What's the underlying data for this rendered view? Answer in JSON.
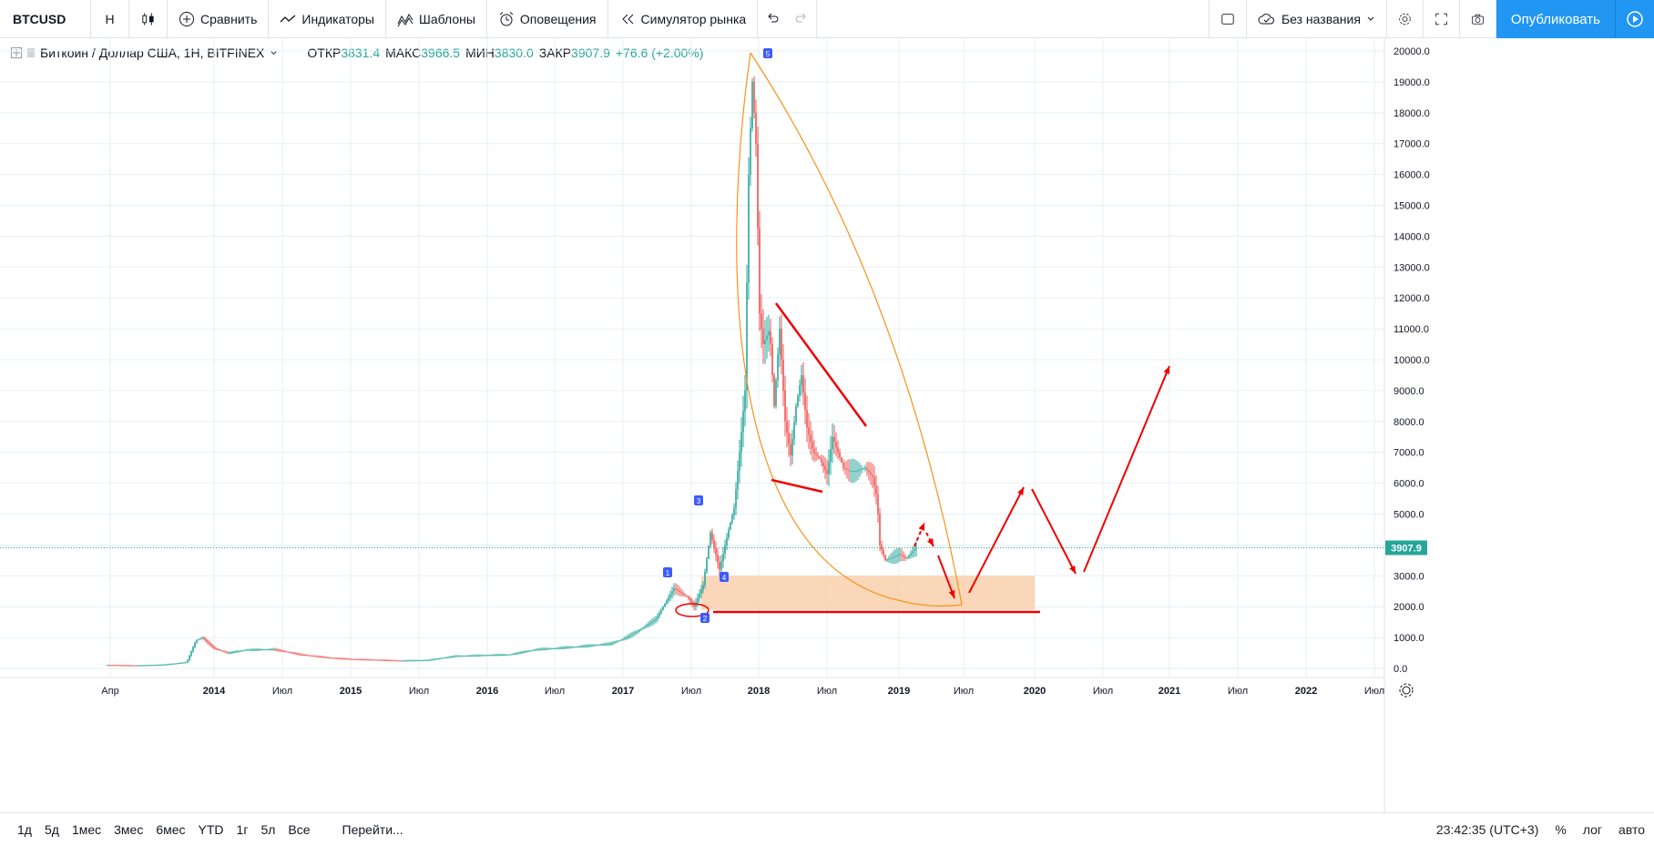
{
  "toolbar": {
    "symbol": "BTCUSD",
    "interval": "Н",
    "compare": "Сравнить",
    "indicators": "Индикаторы",
    "templates": "Шаблоны",
    "alerts": "Оповещения",
    "simulator": "Симулятор рынка",
    "layout_name": "Без названия",
    "publish": "Опубликовать"
  },
  "legend": {
    "title": "Биткоин / Доллар США, 1Н, BITFINEX",
    "open_label": "ОТКР",
    "open": "3831.4",
    "high_label": "МАКС",
    "high": "3966.5",
    "low_label": "МИН",
    "low": "3830.0",
    "close_label": "ЗАКР",
    "close": "3907.9",
    "change": "+76.6 (+2.00%)"
  },
  "price_axis": {
    "labels": [
      "20000.0",
      "19000.0",
      "18000.0",
      "17000.0",
      "16000.0",
      "15000.0",
      "14000.0",
      "13000.0",
      "12000.0",
      "11000.0",
      "10000.0",
      "9000.0",
      "8000.0",
      "7000.0",
      "6000.0",
      "5000.0",
      "4000.0",
      "3000.0",
      "2000.0",
      "1000.0",
      "0.0"
    ],
    "current_price": "3907.9"
  },
  "time_axis": {
    "labels": [
      "Апр",
      "2014",
      "Июл",
      "2015",
      "Июл",
      "2016",
      "Июл",
      "2017",
      "Июл",
      "2018",
      "Июл",
      "2019",
      "Июл",
      "2020",
      "Июл",
      "2021",
      "Июл",
      "2022",
      "Июл"
    ],
    "bold": [
      false,
      true,
      false,
      true,
      false,
      true,
      false,
      true,
      false,
      true,
      false,
      true,
      false,
      true,
      false,
      true,
      false,
      true,
      false
    ]
  },
  "annotations": {
    "markers": [
      "1",
      "2",
      "3",
      "4",
      "5"
    ]
  },
  "bottom_bar": {
    "timeframes": [
      "1д",
      "5д",
      "1мес",
      "3мес",
      "6мес",
      "YTD",
      "1г",
      "5л",
      "Все"
    ],
    "goto": "Перейти...",
    "clock": "23:42:35 (UTC+3)",
    "percent": "%",
    "log": "лог",
    "auto": "авто"
  },
  "colors": {
    "up": "#26a69a",
    "down": "#ef5350",
    "accent": "#2196f3",
    "drawing_red": "#f00000",
    "drawing_orange": "#f7931a",
    "zone_fill": "#f8c9a0"
  },
  "chart_data": {
    "type": "candlestick",
    "symbol": "BTCUSD",
    "ylim": [
      0,
      20000
    ],
    "x": [
      "2013-04",
      "2013-07",
      "2013-10",
      "2014-01",
      "2014-04",
      "2014-07",
      "2014-10",
      "2015-01",
      "2015-04",
      "2015-07",
      "2015-10",
      "2016-01",
      "2016-04",
      "2016-07",
      "2016-10",
      "2017-01",
      "2017-04",
      "2017-07",
      "2017-10",
      "2017-12",
      "2018-01",
      "2018-04",
      "2018-07",
      "2018-10",
      "2018-12",
      "2019-03"
    ],
    "close": [
      110,
      90,
      150,
      900,
      450,
      600,
      380,
      250,
      240,
      280,
      310,
      420,
      440,
      650,
      650,
      950,
      1250,
      2600,
      5500,
      19000,
      11000,
      7000,
      7500,
      6400,
      3600,
      3907.9
    ]
  }
}
